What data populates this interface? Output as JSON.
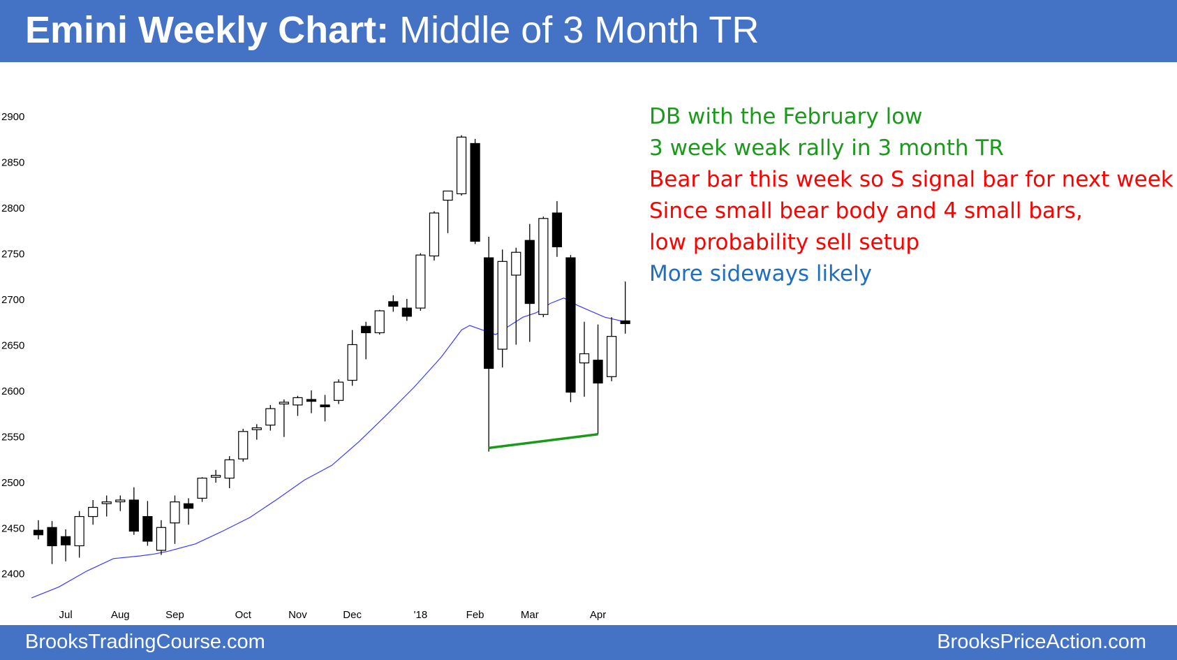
{
  "title": {
    "bold": "Emini Weekly Chart:",
    "rest": "Middle of 3 Month TR"
  },
  "footer": {
    "left": "BrooksTradingCourse.com",
    "right": "BrooksPriceAction.com"
  },
  "annotations": [
    {
      "text": "DB with the February low",
      "color": "#1a9a1a"
    },
    {
      "text": "3 week weak rally in 3 month TR",
      "color": "#1a9a1a"
    },
    {
      "text": "Bear bar this week so S signal bar for next week",
      "color": "#ff0000"
    },
    {
      "text": "Since small bear body and 4 small bars,",
      "color": "#ff0000"
    },
    {
      "text": "low probability sell setup",
      "color": "#ff0000"
    },
    {
      "text": "More sideways likely",
      "color": "#1f6fc0"
    }
  ],
  "chart_data": {
    "type": "candlestick",
    "title": "Emini Weekly Chart: Middle of 3 Month TR",
    "ylim": [
      2370,
      2920
    ],
    "yticks": [
      2400,
      2450,
      2500,
      2550,
      2600,
      2650,
      2700,
      2750,
      2800,
      2850,
      2900
    ],
    "month_labels": [
      {
        "label": "Jul",
        "index": 2
      },
      {
        "label": "Aug",
        "index": 6
      },
      {
        "label": "Sep",
        "index": 10
      },
      {
        "label": "Oct",
        "index": 15
      },
      {
        "label": "Nov",
        "index": 19
      },
      {
        "label": "Dec",
        "index": 23
      },
      {
        "label": "'18",
        "index": 28
      },
      {
        "label": "Feb",
        "index": 32
      },
      {
        "label": "Mar",
        "index": 36
      },
      {
        "label": "Apr",
        "index": 41
      }
    ],
    "candles": [
      {
        "o": 2447,
        "h": 2458,
        "l": 2437,
        "c": 2442
      },
      {
        "o": 2450,
        "h": 2457,
        "l": 2410,
        "c": 2430
      },
      {
        "o": 2440,
        "h": 2448,
        "l": 2413,
        "c": 2431
      },
      {
        "o": 2430,
        "h": 2468,
        "l": 2417,
        "c": 2462
      },
      {
        "o": 2462,
        "h": 2480,
        "l": 2453,
        "c": 2472
      },
      {
        "o": 2478,
        "h": 2485,
        "l": 2462,
        "c": 2478
      },
      {
        "o": 2479,
        "h": 2485,
        "l": 2468,
        "c": 2480
      },
      {
        "o": 2480,
        "h": 2494,
        "l": 2442,
        "c": 2446
      },
      {
        "o": 2462,
        "h": 2479,
        "l": 2430,
        "c": 2435
      },
      {
        "o": 2425,
        "h": 2458,
        "l": 2420,
        "c": 2450
      },
      {
        "o": 2455,
        "h": 2485,
        "l": 2432,
        "c": 2478
      },
      {
        "o": 2476,
        "h": 2482,
        "l": 2453,
        "c": 2471
      },
      {
        "o": 2482,
        "h": 2505,
        "l": 2478,
        "c": 2504
      },
      {
        "o": 2505,
        "h": 2513,
        "l": 2499,
        "c": 2507
      },
      {
        "o": 2504,
        "h": 2528,
        "l": 2493,
        "c": 2524
      },
      {
        "o": 2525,
        "h": 2558,
        "l": 2522,
        "c": 2555
      },
      {
        "o": 2557,
        "h": 2563,
        "l": 2546,
        "c": 2559
      },
      {
        "o": 2562,
        "h": 2584,
        "l": 2556,
        "c": 2580
      },
      {
        "o": 2586,
        "h": 2590,
        "l": 2549,
        "c": 2587
      },
      {
        "o": 2584,
        "h": 2594,
        "l": 2572,
        "c": 2592
      },
      {
        "o": 2590,
        "h": 2600,
        "l": 2575,
        "c": 2588
      },
      {
        "o": 2584,
        "h": 2595,
        "l": 2566,
        "c": 2582
      },
      {
        "o": 2589,
        "h": 2612,
        "l": 2585,
        "c": 2609
      },
      {
        "o": 2611,
        "h": 2666,
        "l": 2605,
        "c": 2650
      },
      {
        "o": 2670,
        "h": 2675,
        "l": 2634,
        "c": 2663
      },
      {
        "o": 2663,
        "h": 2688,
        "l": 2661,
        "c": 2687
      },
      {
        "o": 2697,
        "h": 2704,
        "l": 2686,
        "c": 2692
      },
      {
        "o": 2690,
        "h": 2700,
        "l": 2676,
        "c": 2681
      },
      {
        "o": 2690,
        "h": 2750,
        "l": 2687,
        "c": 2748
      },
      {
        "o": 2747,
        "h": 2796,
        "l": 2742,
        "c": 2794
      },
      {
        "o": 2808,
        "h": 2818,
        "l": 2772,
        "c": 2818
      },
      {
        "o": 2815,
        "h": 2879,
        "l": 2813,
        "c": 2877
      },
      {
        "o": 2870,
        "h": 2875,
        "l": 2760,
        "c": 2763
      },
      {
        "o": 2745,
        "h": 2768,
        "l": 2533,
        "c": 2624
      },
      {
        "o": 2645,
        "h": 2754,
        "l": 2625,
        "c": 2741
      },
      {
        "o": 2726,
        "h": 2756,
        "l": 2650,
        "c": 2751
      },
      {
        "o": 2764,
        "h": 2782,
        "l": 2653,
        "c": 2695
      },
      {
        "o": 2683,
        "h": 2790,
        "l": 2680,
        "c": 2788
      },
      {
        "o": 2794,
        "h": 2807,
        "l": 2746,
        "c": 2757
      },
      {
        "o": 2745,
        "h": 2748,
        "l": 2587,
        "c": 2598
      },
      {
        "o": 2630,
        "h": 2675,
        "l": 2593,
        "c": 2640
      },
      {
        "o": 2633,
        "h": 2672,
        "l": 2552,
        "c": 2608
      },
      {
        "o": 2615,
        "h": 2680,
        "l": 2610,
        "c": 2659
      },
      {
        "o": 2676,
        "h": 2719,
        "l": 2662,
        "c": 2673
      }
    ],
    "moving_average": {
      "points": [
        [
          -0.5,
          2373
        ],
        [
          1.5,
          2385
        ],
        [
          3.5,
          2402
        ],
        [
          5.5,
          2416
        ],
        [
          7.5,
          2419
        ],
        [
          8.5,
          2421
        ],
        [
          9.5,
          2424
        ],
        [
          11.5,
          2432
        ],
        [
          13.5,
          2446
        ],
        [
          15.5,
          2461
        ],
        [
          17.5,
          2481
        ],
        [
          19.5,
          2502
        ],
        [
          21.5,
          2518
        ],
        [
          23.5,
          2544
        ],
        [
          25.5,
          2573
        ],
        [
          27.5,
          2603
        ],
        [
          29.5,
          2636
        ],
        [
          31,
          2666
        ],
        [
          31.6,
          2671
        ],
        [
          33.5,
          2661
        ],
        [
          35.5,
          2680
        ],
        [
          36.5,
          2685
        ],
        [
          37.5,
          2695
        ],
        [
          38.5,
          2701
        ],
        [
          39.5,
          2693
        ],
        [
          41.5,
          2680
        ],
        [
          43,
          2675
        ]
      ],
      "color": "#3a3aff"
    },
    "double_bottom_line": {
      "from": [
        33,
        2537
      ],
      "to": [
        41,
        2552
      ],
      "color": "#1a9a1a"
    }
  }
}
